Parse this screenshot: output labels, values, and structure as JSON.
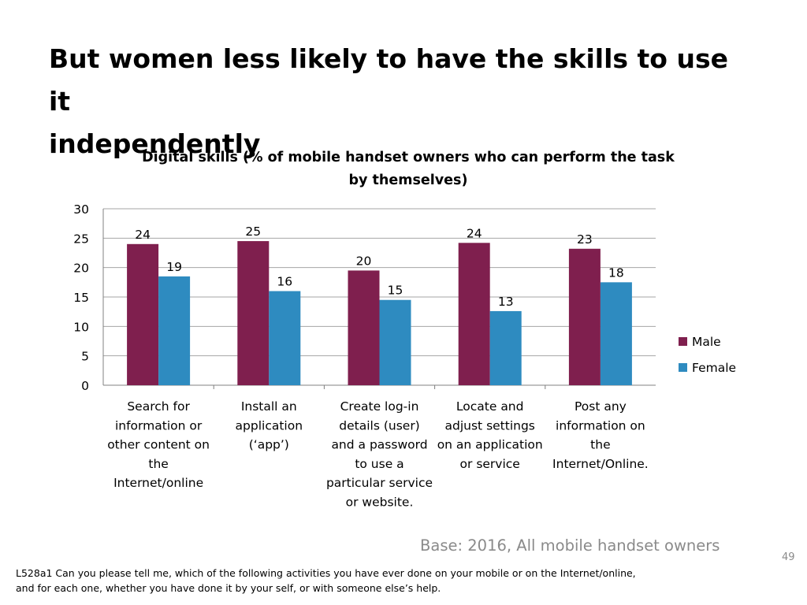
{
  "slide": {
    "title_line1": "But women less likely to have the skills to use it",
    "title_line2": "independently",
    "base_note": "Base:  2016, All mobile handset owners",
    "page_number": "49",
    "footnote_line1": "L528a1  Can you please tell me, which of the following activities you have ever done on your mobile or on the Internet/online,",
    "footnote_line2": "and for each one, whether you have done it by your self, or with someone else’s help."
  },
  "chart_data": {
    "type": "bar",
    "title_line1": "Digital skills (% of mobile handset owners who can perform the task",
    "title_line2": "by themselves)",
    "categories": [
      [
        "Search for",
        "information or",
        "other content on",
        "the",
        "Internet/online"
      ],
      [
        "Install an",
        "application",
        "(‘app’)"
      ],
      [
        "Create log-in",
        "details (user)",
        "and a password",
        "to use a",
        "particular service",
        "or website."
      ],
      [
        "Locate and",
        "adjust settings",
        "on an application",
        "or service"
      ],
      [
        "Post any",
        "information on",
        "the",
        "Internet/Online."
      ]
    ],
    "series": [
      {
        "name": "Male",
        "color": "#7f1f4e",
        "values": [
          24,
          24.5,
          19.5,
          24.2,
          23.2
        ],
        "labels": [
          "24",
          "25",
          "20",
          "24",
          "23"
        ]
      },
      {
        "name": "Female",
        "color": "#2e8bc0",
        "values": [
          18.5,
          16,
          14.5,
          12.6,
          17.5
        ],
        "labels": [
          "19",
          "16",
          "15",
          "13",
          "18"
        ]
      }
    ],
    "ylim": [
      0,
      30
    ],
    "yticks": [
      0,
      5,
      10,
      15,
      20,
      25,
      30
    ],
    "grid": true,
    "legend": "right"
  }
}
